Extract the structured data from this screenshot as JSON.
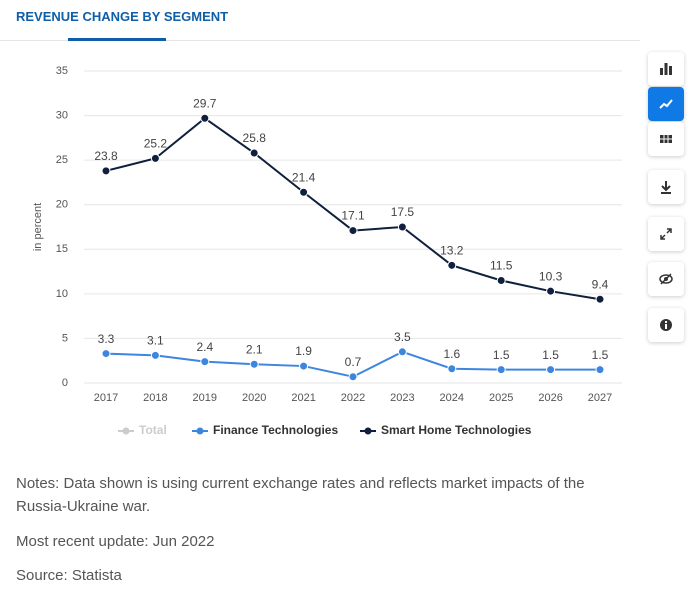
{
  "header": {
    "tab": "REVENUE CHANGE BY SEGMENT"
  },
  "chart_data": {
    "type": "line",
    "y_label": "in percent",
    "categories": [
      "2017",
      "2018",
      "2019",
      "2020",
      "2021",
      "2022",
      "2023",
      "2024",
      "2025",
      "2026",
      "2027"
    ],
    "series": [
      {
        "name": "Total",
        "color": "#cccccc",
        "visible": false,
        "values": [
          null,
          null,
          null,
          null,
          null,
          null,
          null,
          null,
          null,
          null,
          null
        ]
      },
      {
        "name": "Finance Technologies",
        "color": "#3d86e0",
        "visible": true,
        "values": [
          3.3,
          3.1,
          2.4,
          2.1,
          1.9,
          0.7,
          3.5,
          1.6,
          1.5,
          1.5,
          1.5
        ]
      },
      {
        "name": "Smart Home Technologies",
        "color": "#0f1f3d",
        "visible": true,
        "values": [
          23.8,
          25.2,
          29.7,
          25.8,
          21.4,
          17.1,
          17.5,
          13.2,
          11.5,
          10.3,
          9.4
        ]
      }
    ],
    "ylim": [
      0,
      35
    ],
    "yticks": [
      0,
      5,
      10,
      15,
      20,
      25,
      30,
      35
    ],
    "grid": true,
    "legend": "bottom"
  },
  "notes": [
    "Notes: Data shown is using current exchange rates and reflects market impacts of the Russia-Ukraine war.",
    "Most recent update: Jun 2022",
    "Source: Statista"
  ]
}
